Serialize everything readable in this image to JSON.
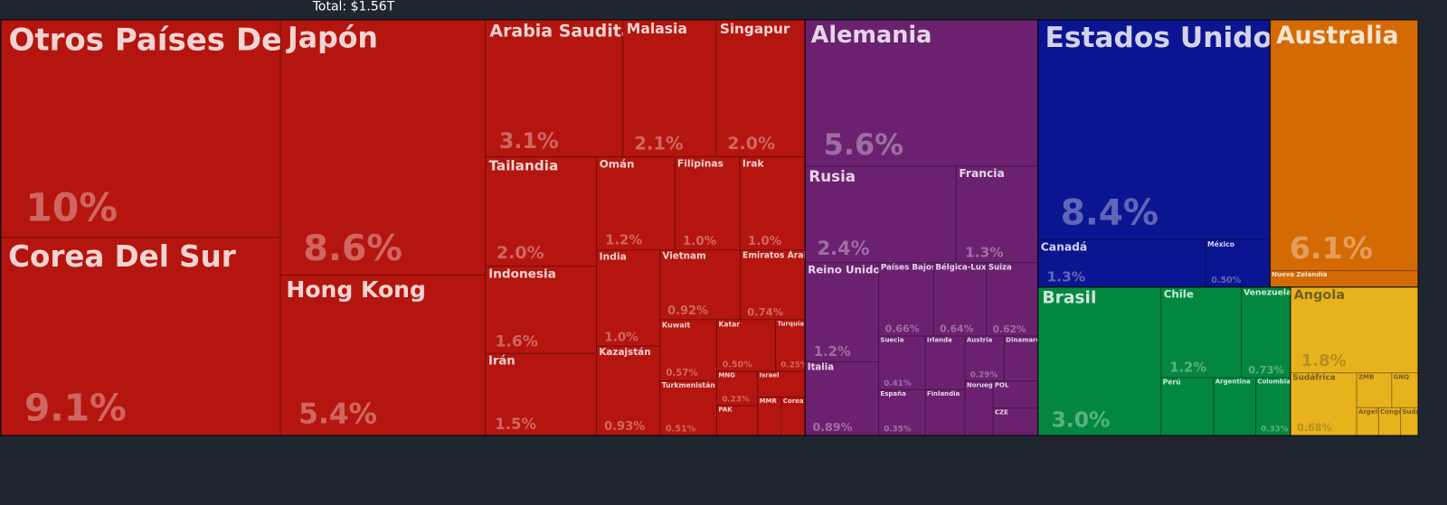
{
  "chart_data": {
    "type": "treemap",
    "title": "Total: $1.56T",
    "series": [
      {
        "color": "#b5150f",
        "categories": [
          "Otros Países De Asia",
          "Corea Del Sur",
          "Japón",
          "Hong Kong",
          "Arabia Saudita",
          "Malasia",
          "Singapur",
          "Tailandia",
          "Indonesia",
          "Irán",
          "Omán",
          "Filipinas",
          "Irak",
          "India",
          "Kazajstán",
          "Vietnam",
          "Emiratos Árabes Unidos",
          "Kuwait",
          "Turkmenistán",
          "Katar",
          "Turquía",
          "MNG",
          "PAK",
          "Israel",
          "MMR",
          "Corea Del..."
        ],
        "values": [
          10,
          9.1,
          8.6,
          5.4,
          3.1,
          2.1,
          2.0,
          2.0,
          1.6,
          1.5,
          1.2,
          1.0,
          1.0,
          1.0,
          0.93,
          0.92,
          0.74,
          0.57,
          0.51,
          0.5,
          0.25,
          0.23,
          0.2,
          0.2,
          0.15,
          0.15
        ],
        "value_labels": [
          "10%",
          "9.1%",
          "8.6%",
          "5.4%",
          "3.1%",
          "2.1%",
          "2.0%",
          "2.0%",
          "1.6%",
          "1.5%",
          "1.2%",
          "1.0%",
          "1.0%",
          "1.0%",
          "0.93%",
          "0.92%",
          "0.74%",
          "0.57%",
          "0.51%",
          "0.50%",
          "0.25%",
          "0.23%",
          null,
          null,
          null,
          null
        ]
      },
      {
        "color": "#6b2170",
        "categories": [
          "Alemania",
          "Rusia",
          "Francia",
          "Reino Unido",
          "Italia",
          "Países Bajos",
          "Bélgica-Luxemburgo",
          "Suiza",
          "Suecia",
          "España",
          "Irlanda",
          "Finlandia",
          "Austria",
          "Dinamarca",
          "Noruega",
          "POL",
          "CZE"
        ],
        "values": [
          5.6,
          2.4,
          1.3,
          1.2,
          0.89,
          0.66,
          0.64,
          0.62,
          0.41,
          0.35,
          0.35,
          0.3,
          0.29,
          0.25,
          0.25,
          0.2,
          0.2
        ],
        "value_labels": [
          "5.6%",
          "2.4%",
          "1.3%",
          "1.2%",
          "0.89%",
          "0.66%",
          "0.64%",
          "0.62%",
          "0.41%",
          "0.35%",
          null,
          null,
          "0.29%",
          null,
          null,
          null,
          null
        ]
      },
      {
        "color": "#0c1591",
        "categories": [
          "Estados Unidos",
          "Canadá",
          "México"
        ],
        "values": [
          8.4,
          1.3,
          0.5
        ],
        "value_labels": [
          "8.4%",
          "1.3%",
          "0.50%"
        ]
      },
      {
        "color": "#d46a04",
        "categories": [
          "Australia",
          "Nueva Zelandia"
        ],
        "values": [
          6.1,
          0.4
        ],
        "value_labels": [
          "6.1%",
          null
        ]
      },
      {
        "color": "#03873f",
        "categories": [
          "Brasil",
          "Chile",
          "Venezuela",
          "Perú",
          "Argentina",
          "Colombia"
        ],
        "values": [
          3.0,
          1.2,
          0.73,
          0.5,
          0.4,
          0.33
        ],
        "value_labels": [
          "3.0%",
          "1.2%",
          "0.73%",
          null,
          null,
          "0.33%"
        ]
      },
      {
        "color": "#e8b21c",
        "categories": [
          "Angola",
          "Sudáfrica",
          "ZMB",
          "GNQ",
          "Argelia",
          "Congo,...",
          "Sudán"
        ],
        "values": [
          1.8,
          0.68,
          0.2,
          0.15,
          0.1,
          0.1,
          0.08
        ],
        "value_labels": [
          "1.8%",
          "0.68%",
          null,
          null,
          null,
          null,
          null
        ]
      }
    ]
  }
}
